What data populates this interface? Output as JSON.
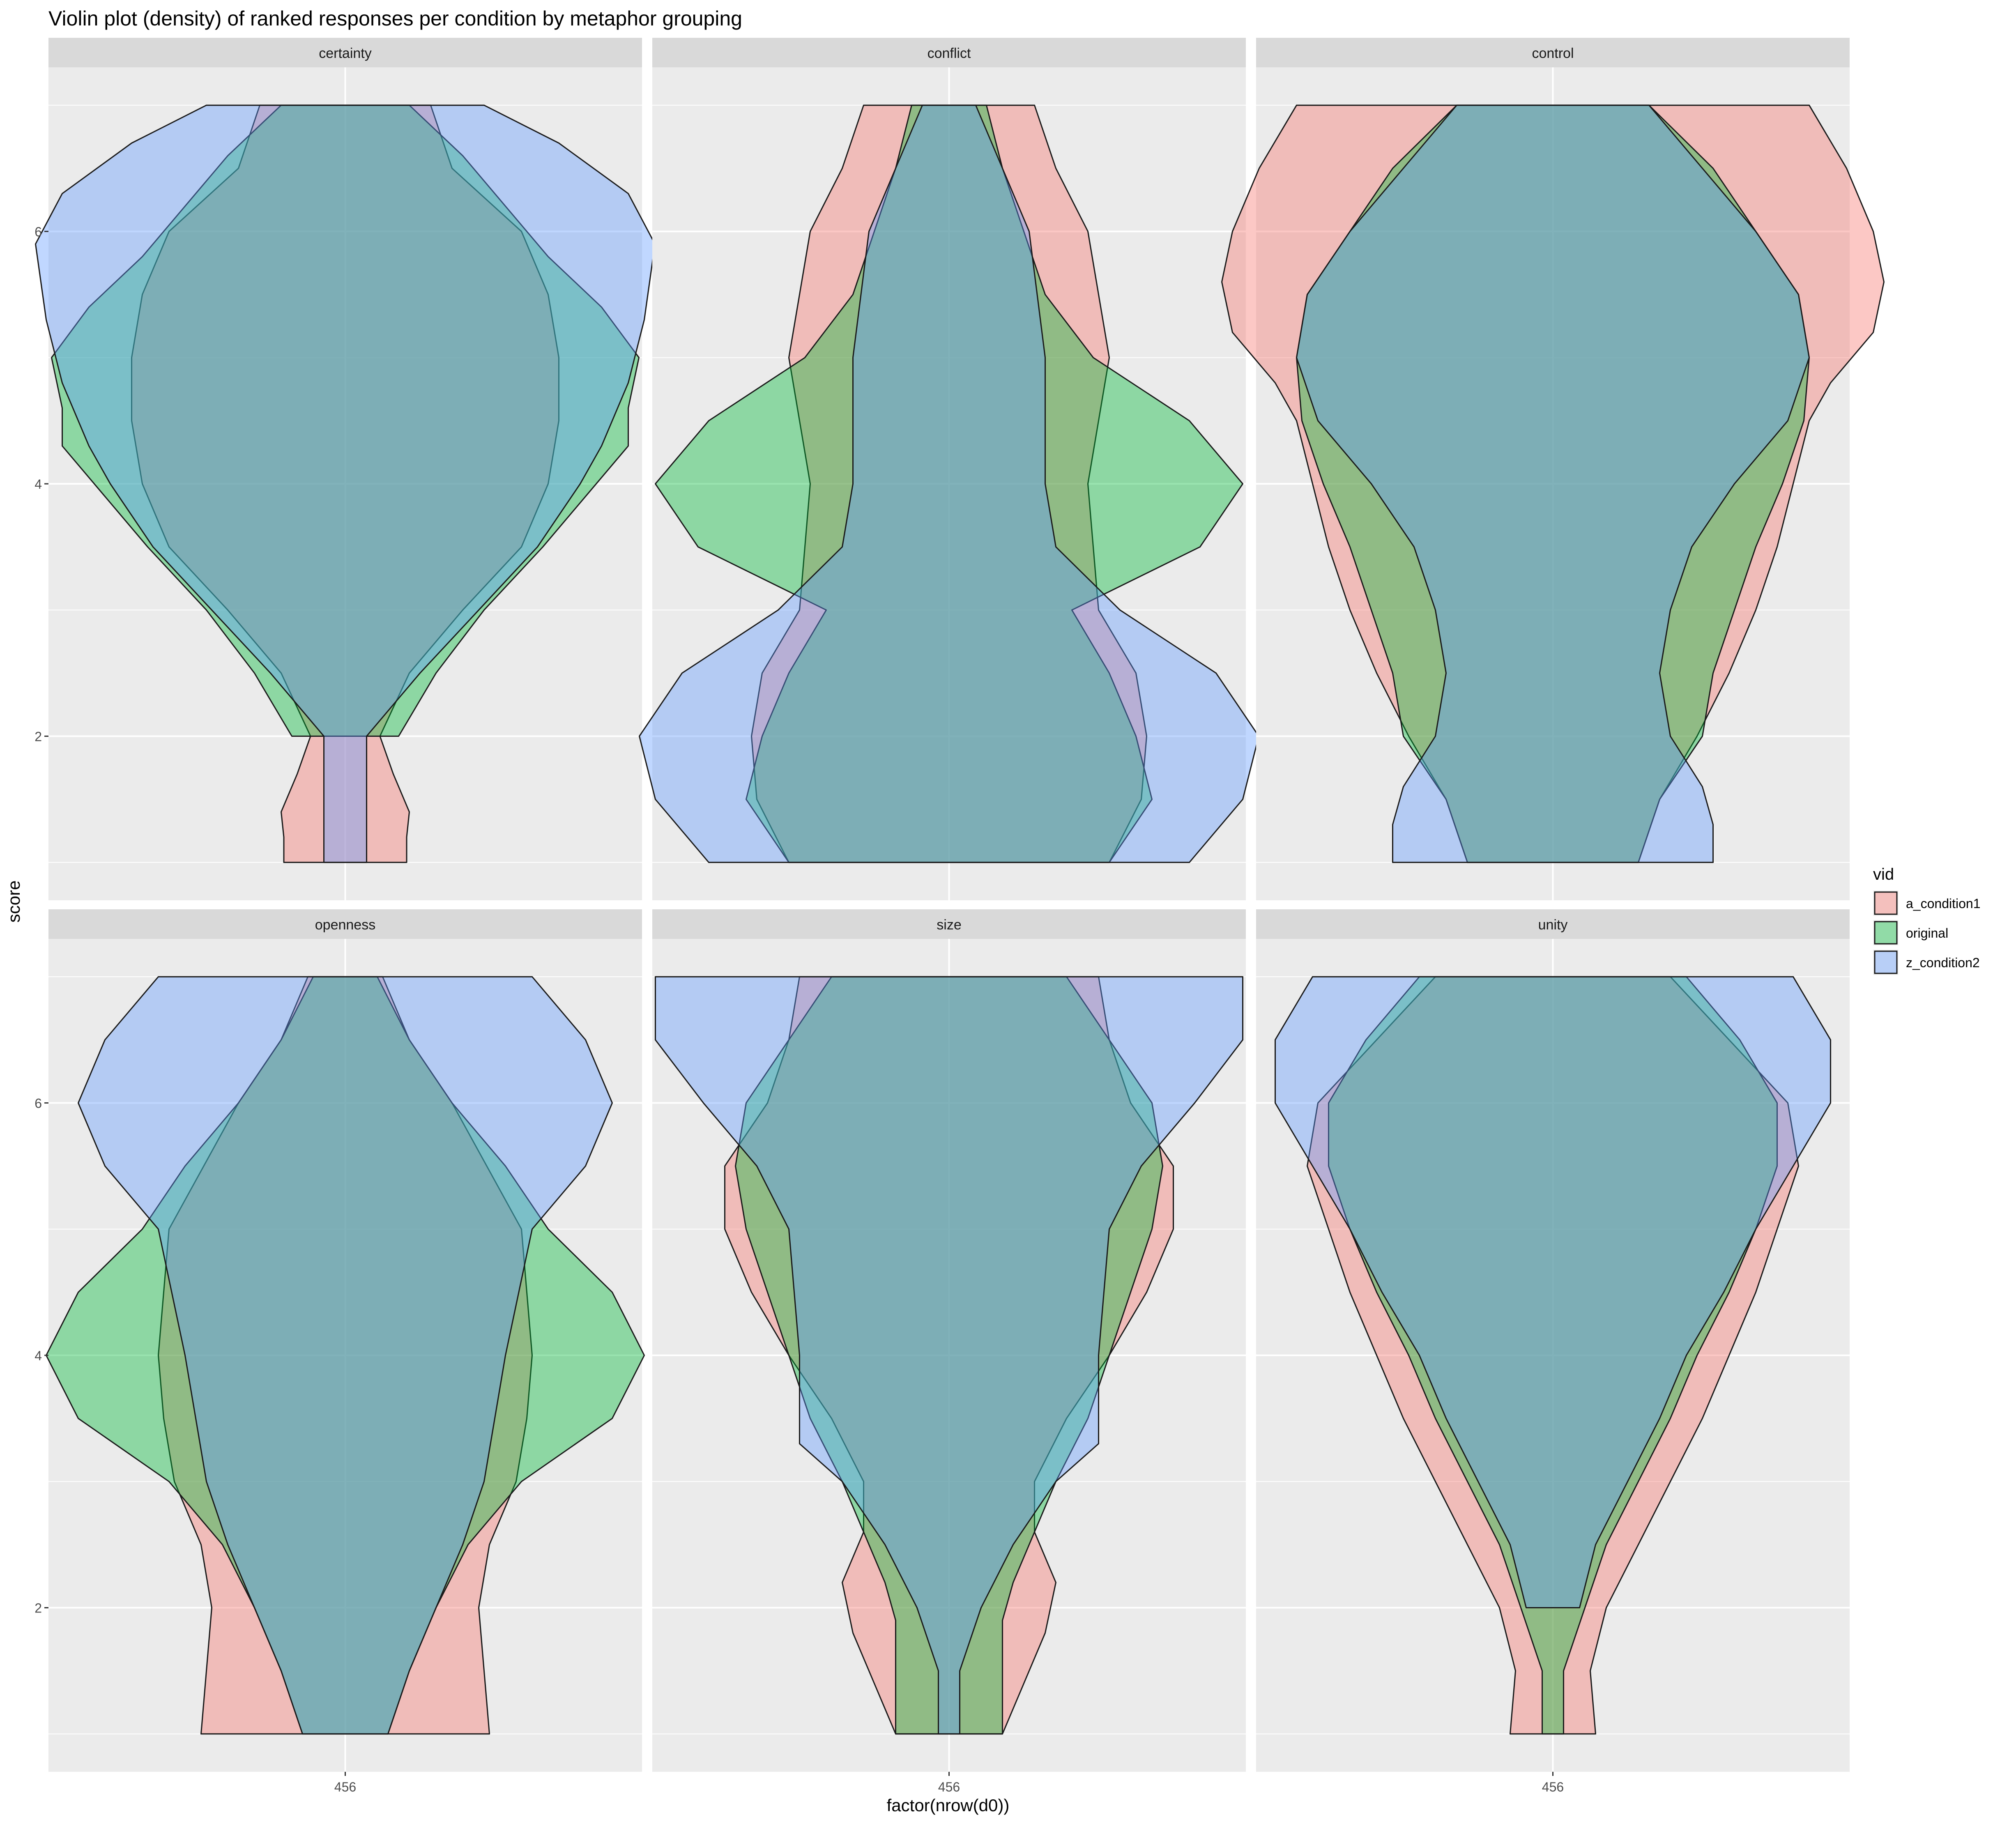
{
  "chart_data": {
    "type": "violin",
    "title": "Violin plot (density) of ranked responses per condition by metaphor grouping",
    "xlabel": "factor(nrow(d0))",
    "ylabel": "score",
    "x_tick_label": "456",
    "y_ticks": [
      2,
      4,
      6
    ],
    "ylim": [
      0.7,
      7.3
    ],
    "legend": {
      "title": "vid",
      "position": "right",
      "entries": [
        {
          "name": "a_condition1",
          "color": "#F8766D"
        },
        {
          "name": "original",
          "color": "#00BA38"
        },
        {
          "name": "z_condition2",
          "color": "#619CFF"
        }
      ]
    },
    "panels": [
      {
        "name": "certainty",
        "series": [
          {
            "name": "a_condition1",
            "y": [
              1,
              1.2,
              1.4,
              1.7,
              2,
              2.5,
              3,
              3.5,
              4,
              4.5,
              5,
              5.5,
              6,
              6.5,
              7
            ],
            "halfwidth": [
              0.115,
              0.115,
              0.12,
              0.09,
              0.065,
              0.12,
              0.22,
              0.33,
              0.38,
              0.4,
              0.4,
              0.38,
              0.33,
              0.2,
              0.16
            ]
          },
          {
            "name": "original",
            "y": [
              2,
              2.5,
              3,
              3.5,
              4,
              4.3,
              4.6,
              5,
              5.4,
              5.8,
              6.2,
              6.6,
              7
            ],
            "halfwidth": [
              0.1,
              0.17,
              0.26,
              0.37,
              0.47,
              0.53,
              0.53,
              0.55,
              0.48,
              0.38,
              0.3,
              0.22,
              0.12
            ]
          },
          {
            "name": "z_condition2",
            "y": [
              1,
              1.5,
              2,
              2.5,
              3,
              3.5,
              4,
              4.3,
              4.8,
              5.3,
              5.9,
              6.3,
              6.7,
              7
            ],
            "halfwidth": [
              0.04,
              0.04,
              0.04,
              0.14,
              0.25,
              0.36,
              0.44,
              0.48,
              0.53,
              0.56,
              0.58,
              0.53,
              0.4,
              0.26
            ]
          }
        ]
      },
      {
        "name": "conflict",
        "series": [
          {
            "name": "a_condition1",
            "y": [
              1,
              1.5,
              2,
              2.5,
              3,
              4,
              5,
              6,
              6.5,
              7
            ],
            "halfwidth": [
              0.3,
              0.36,
              0.37,
              0.35,
              0.28,
              0.26,
              0.3,
              0.26,
              0.2,
              0.16
            ]
          },
          {
            "name": "original",
            "y": [
              1,
              1.5,
              2,
              2.5,
              3,
              3.5,
              4,
              4.5,
              5,
              5.5,
              6,
              6.5,
              7
            ],
            "halfwidth": [
              0.3,
              0.38,
              0.35,
              0.3,
              0.23,
              0.47,
              0.55,
              0.45,
              0.27,
              0.18,
              0.14,
              0.1,
              0.07
            ]
          },
          {
            "name": "z_condition2",
            "y": [
              1,
              1.5,
              2,
              2.5,
              3,
              3.5,
              4,
              5,
              6,
              6.5,
              7
            ],
            "halfwidth": [
              0.45,
              0.55,
              0.58,
              0.5,
              0.32,
              0.2,
              0.18,
              0.18,
              0.15,
              0.1,
              0.05
            ]
          }
        ]
      },
      {
        "name": "control",
        "series": [
          {
            "name": "a_condition1",
            "y": [
              1,
              1.5,
              2,
              2.5,
              3,
              3.5,
              4,
              4.5,
              4.8,
              5.2,
              5.6,
              6,
              6.5,
              7
            ],
            "halfwidth": [
              0.16,
              0.2,
              0.27,
              0.33,
              0.38,
              0.42,
              0.45,
              0.48,
              0.52,
              0.6,
              0.62,
              0.6,
              0.55,
              0.48
            ]
          },
          {
            "name": "original",
            "y": [
              1,
              1.5,
              2,
              2.5,
              3,
              3.5,
              4,
              4.5,
              5,
              5.5,
              6,
              6.5,
              7
            ],
            "halfwidth": [
              0.16,
              0.2,
              0.28,
              0.3,
              0.34,
              0.38,
              0.43,
              0.47,
              0.48,
              0.46,
              0.38,
              0.3,
              0.18
            ]
          },
          {
            "name": "z_condition2",
            "y": [
              1,
              1.3,
              1.6,
              2,
              2.5,
              3,
              3.5,
              4,
              4.5,
              5,
              5.5,
              6,
              6.5,
              7
            ],
            "halfwidth": [
              0.3,
              0.3,
              0.28,
              0.22,
              0.2,
              0.22,
              0.26,
              0.34,
              0.44,
              0.48,
              0.46,
              0.38,
              0.28,
              0.18
            ]
          }
        ]
      },
      {
        "name": "openness",
        "series": [
          {
            "name": "a_condition1",
            "y": [
              1,
              1.5,
              2,
              2.5,
              3,
              3.5,
              4,
              5,
              6,
              6.5,
              7
            ],
            "halfwidth": [
              0.27,
              0.26,
              0.25,
              0.27,
              0.32,
              0.34,
              0.35,
              0.33,
              0.2,
              0.12,
              0.07
            ]
          },
          {
            "name": "original",
            "y": [
              1,
              1.5,
              2,
              2.5,
              3,
              3.5,
              4,
              4.5,
              5,
              5.5,
              6,
              6.5,
              7
            ],
            "halfwidth": [
              0.08,
              0.12,
              0.17,
              0.23,
              0.33,
              0.5,
              0.56,
              0.5,
              0.38,
              0.3,
              0.2,
              0.12,
              0.06
            ]
          },
          {
            "name": "z_condition2",
            "y": [
              1,
              1.5,
              2,
              2.5,
              3,
              3.5,
              4,
              5,
              5.5,
              6,
              6.5,
              7
            ],
            "halfwidth": [
              0.08,
              0.12,
              0.17,
              0.22,
              0.26,
              0.28,
              0.3,
              0.35,
              0.45,
              0.5,
              0.45,
              0.35
            ]
          }
        ]
      },
      {
        "name": "size",
        "series": [
          {
            "name": "a_condition1",
            "y": [
              1,
              1.4,
              1.8,
              2.2,
              2.6,
              3,
              3.5,
              4,
              4.5,
              5,
              5.5,
              6,
              6.5,
              7
            ],
            "halfwidth": [
              0.1,
              0.14,
              0.18,
              0.2,
              0.16,
              0.16,
              0.22,
              0.3,
              0.37,
              0.42,
              0.42,
              0.34,
              0.3,
              0.28
            ]
          },
          {
            "name": "original",
            "y": [
              1,
              1.5,
              1.9,
              2.2,
              2.6,
              3,
              3.5,
              4,
              4.5,
              5,
              5.5,
              6,
              6.5,
              7
            ],
            "halfwidth": [
              0.1,
              0.1,
              0.1,
              0.12,
              0.16,
              0.2,
              0.26,
              0.3,
              0.34,
              0.38,
              0.4,
              0.38,
              0.3,
              0.22
            ]
          },
          {
            "name": "z_condition2",
            "y": [
              1,
              1.5,
              2,
              2.5,
              3,
              3.3,
              3.6,
              4,
              5,
              5.5,
              6,
              6.5,
              7
            ],
            "halfwidth": [
              0.02,
              0.02,
              0.06,
              0.12,
              0.2,
              0.28,
              0.28,
              0.28,
              0.3,
              0.36,
              0.46,
              0.55,
              0.55
            ]
          }
        ]
      },
      {
        "name": "unity",
        "series": [
          {
            "name": "a_condition1",
            "y": [
              1,
              1.5,
              2,
              2.5,
              3,
              3.5,
              4,
              4.5,
              5,
              5.5,
              6,
              6.5,
              7
            ],
            "halfwidth": [
              0.08,
              0.07,
              0.1,
              0.16,
              0.22,
              0.28,
              0.33,
              0.38,
              0.42,
              0.46,
              0.44,
              0.33,
              0.22
            ]
          },
          {
            "name": "original",
            "y": [
              1,
              1.5,
              2,
              2.5,
              3,
              3.5,
              4,
              4.5,
              5,
              5.5,
              6,
              6.5,
              7
            ],
            "halfwidth": [
              0.02,
              0.02,
              0.06,
              0.1,
              0.16,
              0.22,
              0.27,
              0.33,
              0.38,
              0.42,
              0.42,
              0.35,
              0.25
            ]
          },
          {
            "name": "z_condition2",
            "y": [
              2,
              2.5,
              3,
              3.5,
              4,
              4.5,
              5,
              5.5,
              6,
              6.5,
              7
            ],
            "halfwidth": [
              0.05,
              0.08,
              0.14,
              0.2,
              0.25,
              0.32,
              0.38,
              0.45,
              0.52,
              0.52,
              0.45
            ]
          }
        ]
      }
    ]
  }
}
